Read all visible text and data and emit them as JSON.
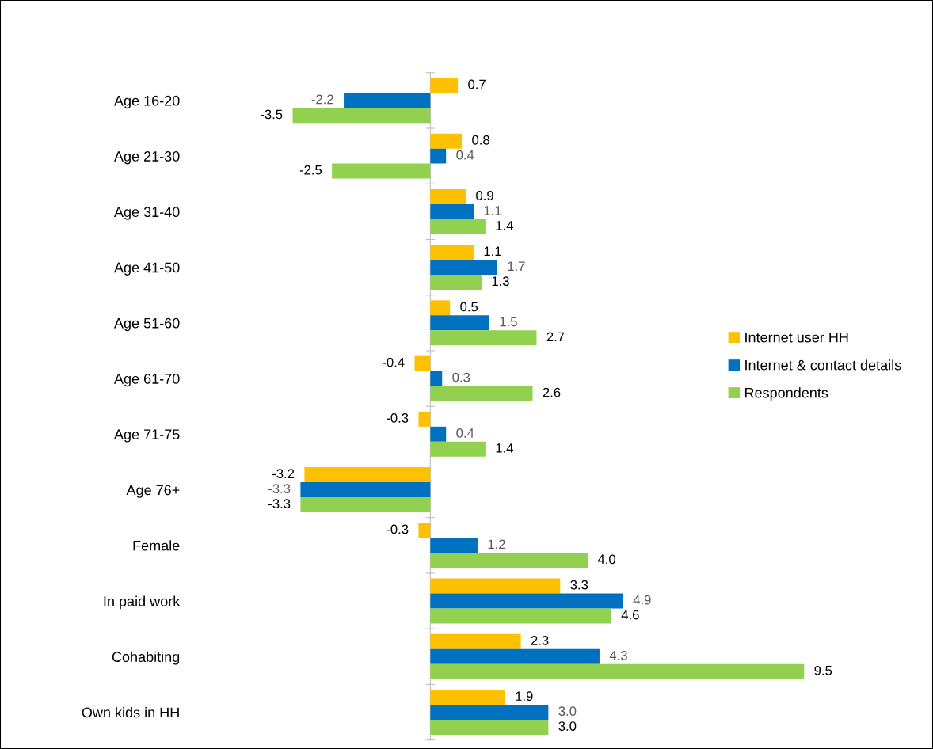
{
  "chart_data": {
    "type": "bar",
    "orientation": "horizontal",
    "categories": [
      "Age 16-20",
      "Age 21-30",
      "Age 31-40",
      "Age 41-50",
      "Age 51-60",
      "Age 61-70",
      "Age 71-75",
      "Age 76+",
      "Female",
      "In paid work",
      "Cohabiting",
      "Own kids in HH"
    ],
    "series": [
      {
        "name": "Internet user HH",
        "color": "#ffc000",
        "values": [
          0.7,
          0.8,
          0.9,
          1.1,
          0.5,
          -0.4,
          -0.3,
          -3.2,
          -0.3,
          3.3,
          2.3,
          1.9
        ],
        "value_labels": [
          "0.7",
          "0.8",
          "0.9",
          "1.1",
          "0.5",
          "-0.4",
          "-0.3",
          "-3.2",
          "-0.3",
          "3.3",
          "2.3",
          "1.9"
        ]
      },
      {
        "name": "Internet & contact details",
        "color": "#0070c0",
        "values": [
          -2.2,
          0.4,
          1.1,
          1.7,
          1.5,
          0.3,
          0.4,
          -3.3,
          1.2,
          4.9,
          4.3,
          3.0
        ],
        "value_labels": [
          "-2.2",
          "0.4",
          "1.1",
          "1.7",
          "1.5",
          "0.3",
          "0.4",
          "-3.3",
          "1.2",
          "4.9",
          "4.3",
          "3.0"
        ]
      },
      {
        "name": "Respondents",
        "color": "#92d050",
        "values": [
          -3.5,
          -2.5,
          1.4,
          1.3,
          2.7,
          2.6,
          1.4,
          -3.3,
          4.0,
          4.6,
          9.5,
          3.0
        ],
        "value_labels": [
          "-3.5",
          "-2.5",
          "1.4",
          "1.3",
          "2.7",
          "2.6",
          "1.4",
          "-3.3",
          "4.0",
          "4.6",
          "9.5",
          "3.0"
        ]
      }
    ],
    "tick_labels": "y",
    "legend": "right",
    "grid": false
  }
}
